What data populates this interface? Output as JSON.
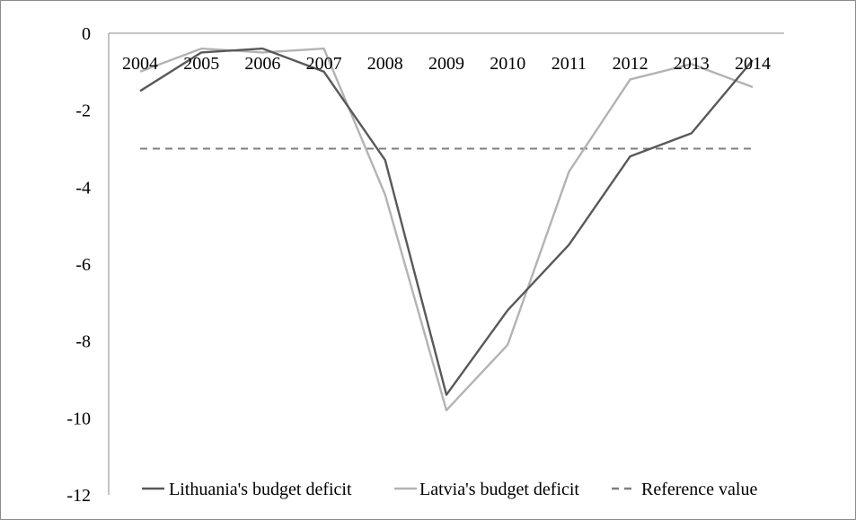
{
  "chart_data": {
    "type": "line",
    "title": "",
    "xlabel": "",
    "ylabel": "",
    "x": [
      "2004",
      "2005",
      "2006",
      "2007",
      "2008",
      "2009",
      "2010",
      "2011",
      "2012",
      "2013",
      "2014"
    ],
    "ylim": [
      -12,
      0
    ],
    "yticks": [
      0,
      -2,
      -4,
      -6,
      -8,
      -10,
      -12
    ],
    "grid": false,
    "legend_position": "bottom",
    "x_tick_labels_position": "top",
    "series": [
      {
        "name": "Lithuania's budget deficit",
        "color": "#595959",
        "dash": "solid",
        "values": [
          -1.5,
          -0.5,
          -0.4,
          -1.0,
          -3.3,
          -9.4,
          -7.2,
          -5.5,
          -3.2,
          -2.6,
          -0.7
        ]
      },
      {
        "name": "Latvia's budget deficit",
        "color": "#b3b3b3",
        "dash": "solid",
        "values": [
          -1.0,
          -0.4,
          -0.5,
          -0.4,
          -4.2,
          -9.8,
          -8.1,
          -3.6,
          -1.2,
          -0.8,
          -1.4
        ]
      },
      {
        "name": "Reference value",
        "color": "#7f7f7f",
        "dash": "dashed",
        "values": [
          -3,
          -3,
          -3,
          -3,
          -3,
          -3,
          -3,
          -3,
          -3,
          -3,
          -3
        ]
      }
    ]
  }
}
